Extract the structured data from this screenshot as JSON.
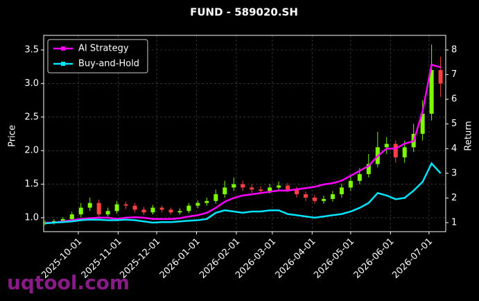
{
  "chart_data": {
    "type": "candlestick",
    "title": "FUND - 589020.SH",
    "y_label": "Price",
    "y2_label": "Return",
    "watermark": "uqtool.com",
    "x": [
      "2025-09-05",
      "2025-09-12",
      "2025-09-19",
      "2025-09-26",
      "2025-10-03",
      "2025-10-10",
      "2025-10-17",
      "2025-10-24",
      "2025-10-31",
      "2025-11-07",
      "2025-11-14",
      "2025-11-21",
      "2025-11-28",
      "2025-12-05",
      "2025-12-12",
      "2025-12-19",
      "2025-12-26",
      "2026-01-02",
      "2026-01-09",
      "2026-01-16",
      "2026-01-23",
      "2026-01-30",
      "2026-02-06",
      "2026-02-13",
      "2026-02-20",
      "2026-02-27",
      "2026-03-06",
      "2026-03-13",
      "2026-03-20",
      "2026-03-27",
      "2026-04-03",
      "2026-04-10",
      "2026-04-17",
      "2026-04-24",
      "2026-05-01",
      "2026-05-08",
      "2026-05-15",
      "2026-05-22",
      "2026-05-29",
      "2026-06-05",
      "2026-06-12",
      "2026-06-19",
      "2026-06-26",
      "2026-07-03",
      "2026-07-10"
    ],
    "open": [
      0.92,
      0.93,
      0.95,
      0.98,
      1.05,
      1.15,
      1.22,
      1.05,
      1.1,
      1.2,
      1.18,
      1.12,
      1.08,
      1.15,
      1.12,
      1.08,
      1.1,
      1.18,
      1.22,
      1.25,
      1.35,
      1.45,
      1.5,
      1.45,
      1.42,
      1.4,
      1.45,
      1.48,
      1.42,
      1.35,
      1.3,
      1.25,
      1.28,
      1.35,
      1.45,
      1.55,
      1.65,
      1.8,
      2.05,
      2.1,
      1.9,
      2.05,
      2.25,
      2.55,
      3.2
    ],
    "high": [
      0.96,
      0.98,
      1.01,
      1.09,
      1.22,
      1.3,
      1.27,
      1.15,
      1.25,
      1.24,
      1.22,
      1.16,
      1.19,
      1.18,
      1.15,
      1.14,
      1.22,
      1.26,
      1.3,
      1.42,
      1.55,
      1.6,
      1.55,
      1.5,
      1.47,
      1.5,
      1.54,
      1.52,
      1.46,
      1.39,
      1.34,
      1.33,
      1.4,
      1.51,
      1.62,
      1.74,
      1.95,
      2.28,
      2.2,
      2.15,
      2.15,
      2.4,
      2.75,
      3.58,
      3.4
    ],
    "low": [
      0.89,
      0.9,
      0.92,
      0.95,
      1.01,
      1.1,
      1.0,
      1.02,
      1.06,
      1.13,
      1.08,
      1.04,
      1.05,
      1.08,
      1.05,
      1.05,
      1.07,
      1.14,
      1.18,
      1.21,
      1.3,
      1.4,
      1.4,
      1.37,
      1.36,
      1.36,
      1.4,
      1.38,
      1.3,
      1.25,
      1.21,
      1.21,
      1.24,
      1.3,
      1.4,
      1.5,
      1.6,
      1.75,
      1.95,
      1.82,
      1.82,
      1.98,
      2.15,
      2.45,
      2.8
    ],
    "close": [
      0.93,
      0.95,
      0.98,
      1.05,
      1.15,
      1.22,
      1.05,
      1.1,
      1.2,
      1.18,
      1.12,
      1.08,
      1.15,
      1.12,
      1.08,
      1.1,
      1.18,
      1.22,
      1.25,
      1.35,
      1.45,
      1.5,
      1.45,
      1.42,
      1.4,
      1.45,
      1.48,
      1.42,
      1.35,
      1.3,
      1.25,
      1.28,
      1.35,
      1.45,
      1.55,
      1.65,
      1.8,
      2.05,
      2.1,
      1.9,
      2.05,
      2.25,
      2.55,
      3.2,
      3.0
    ],
    "up_color": "#7cfc00",
    "down_color": "#ff4040",
    "series": [
      {
        "name": "AI Strategy",
        "color": "#ff00ff",
        "axis": "y2",
        "values": [
          1.0,
          1.0,
          1.05,
          1.1,
          1.15,
          1.18,
          1.2,
          1.2,
          1.15,
          1.2,
          1.22,
          1.2,
          1.15,
          1.15,
          1.15,
          1.18,
          1.25,
          1.3,
          1.4,
          1.6,
          1.85,
          2.0,
          2.1,
          2.15,
          2.2,
          2.25,
          2.3,
          2.3,
          2.35,
          2.4,
          2.45,
          2.55,
          2.6,
          2.7,
          2.9,
          3.1,
          3.3,
          3.7,
          4.0,
          4.0,
          4.2,
          4.3,
          5.5,
          7.4,
          7.3
        ]
      },
      {
        "name": "Buy-and-Hold",
        "color": "#00e5ff",
        "axis": "y2",
        "values": [
          0.97,
          1.0,
          1.02,
          1.05,
          1.1,
          1.12,
          1.12,
          1.1,
          1.1,
          1.12,
          1.1,
          1.05,
          1.0,
          1.02,
          1.02,
          1.05,
          1.08,
          1.1,
          1.15,
          1.4,
          1.5,
          1.45,
          1.4,
          1.45,
          1.45,
          1.5,
          1.5,
          1.35,
          1.3,
          1.25,
          1.2,
          1.25,
          1.3,
          1.35,
          1.45,
          1.6,
          1.8,
          2.2,
          2.1,
          1.95,
          2.0,
          2.3,
          2.65,
          3.4,
          3.0
        ]
      }
    ],
    "xlim": [
      "2025-09-04",
      "2026-07-14"
    ],
    "xticks": [
      "2025-10-01",
      "2025-11-01",
      "2025-12-01",
      "2026-01-01",
      "2026-02-01",
      "2026-03-01",
      "2026-04-01",
      "2026-05-01",
      "2026-06-01",
      "2026-07-01"
    ],
    "ylim": [
      0.793,
      3.717
    ],
    "yticks": [
      {
        "value": 1,
        "label": "1.0"
      },
      1.5,
      {
        "value": 2,
        "label": "2.0"
      },
      2.5,
      {
        "value": 3,
        "label": "3.0"
      },
      3.5
    ],
    "y2lim": [
      0.635,
      8.59
    ],
    "y2ticks": [
      1,
      2,
      3,
      4,
      5,
      6,
      7,
      8
    ],
    "grid": true,
    "legend": "upper left"
  }
}
